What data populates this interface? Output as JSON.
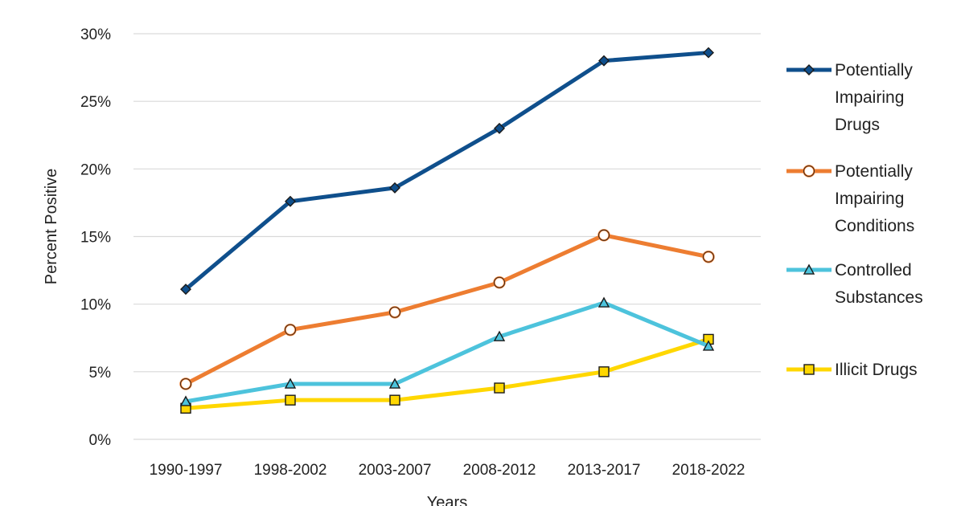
{
  "chart_data": {
    "type": "line",
    "xlabel": "Years",
    "ylabel": "Percent Positive",
    "ylim": [
      0,
      30
    ],
    "y_ticks": [
      "0%",
      "5%",
      "10%",
      "15%",
      "20%",
      "25%",
      "30%"
    ],
    "grid": "horizontal",
    "legend_position": "right",
    "categories": [
      "1990-1997",
      "1998-2002",
      "2003-2007",
      "2008-2012",
      "2013-2017",
      "2018-2022"
    ],
    "series": [
      {
        "name": "Potentially Impairing Drugs",
        "legend_lines": [
          "Potentially",
          "Impairing",
          "Drugs"
        ],
        "color": "#0f4f8c",
        "marker": "diamond",
        "values": [
          11.1,
          17.6,
          18.6,
          23.0,
          28.0,
          28.6
        ]
      },
      {
        "name": "Potentially Impairing Conditions",
        "legend_lines": [
          "Potentially",
          "Impairing",
          "Conditions"
        ],
        "color": "#ed7d31",
        "marker": "circle",
        "values": [
          4.1,
          8.1,
          9.4,
          11.6,
          15.1,
          13.5
        ]
      },
      {
        "name": "Controlled Substances",
        "legend_lines": [
          "Controlled",
          "Substances"
        ],
        "color": "#4dc3dc",
        "marker": "triangle",
        "values": [
          2.8,
          4.1,
          4.1,
          7.6,
          10.1,
          6.9
        ]
      },
      {
        "name": "Illicit Drugs",
        "legend_lines": [
          "Illicit Drugs"
        ],
        "color": "#ffd700",
        "marker": "square",
        "values": [
          2.3,
          2.9,
          2.9,
          3.8,
          5.0,
          7.4
        ]
      }
    ]
  }
}
